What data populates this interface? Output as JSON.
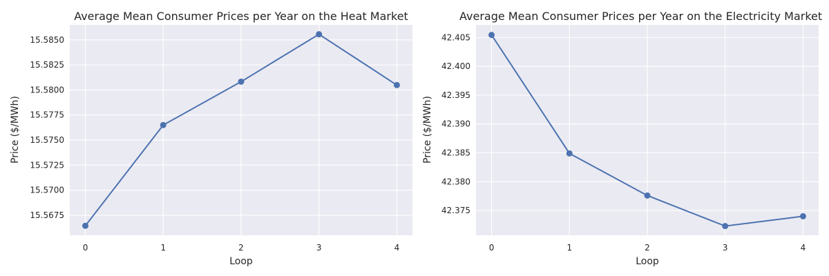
{
  "chart_data": [
    {
      "type": "line",
      "title": "Average Mean Consumer Prices per Year on the Heat Market",
      "xlabel": "Loop",
      "ylabel": "Price ($/MWh)",
      "x": [
        0,
        1,
        2,
        3,
        4
      ],
      "series": [
        {
          "values": [
            15.56645,
            15.5765,
            15.58083,
            15.58556,
            15.58049
          ]
        }
      ],
      "xticks": [
        "0",
        "1",
        "2",
        "3",
        "4"
      ],
      "yticks": [
        "15.5675",
        "15.5700",
        "15.5725",
        "15.5750",
        "15.5775",
        "15.5800",
        "15.5825",
        "15.5850"
      ],
      "ylim": [
        15.5655,
        15.5865
      ],
      "grid": true,
      "color": "#4c72b0"
    },
    {
      "type": "line",
      "title": "Average Mean Consumer Prices per Year on the Electricity Market",
      "xlabel": "Loop",
      "ylabel": "Price ($/MWh)",
      "x": [
        0,
        1,
        2,
        3,
        4
      ],
      "series": [
        {
          "values": [
            42.40545,
            42.3849,
            42.3776,
            42.3723,
            42.374
          ]
        }
      ],
      "xticks": [
        "0",
        "1",
        "2",
        "3",
        "4"
      ],
      "yticks": [
        "42.375",
        "42.380",
        "42.385",
        "42.390",
        "42.395",
        "42.400",
        "42.405"
      ],
      "ylim": [
        42.3707,
        42.4072
      ],
      "grid": true,
      "color": "#4c72b0"
    }
  ]
}
